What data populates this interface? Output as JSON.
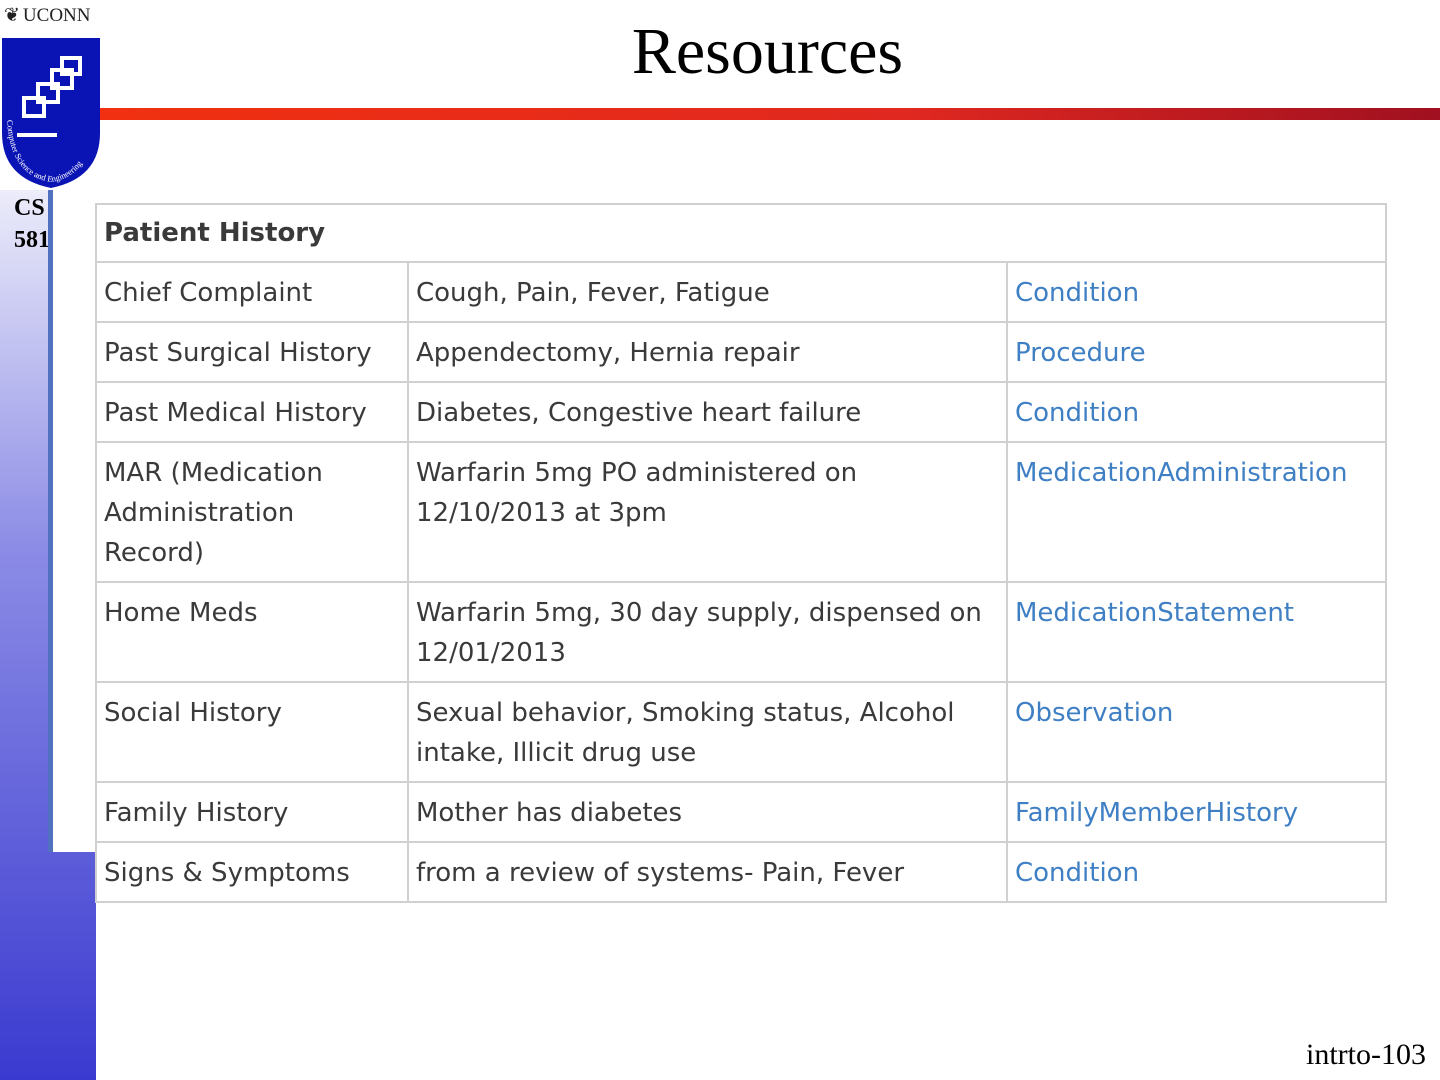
{
  "header": {
    "logo_text": "UCONN",
    "crest_text": "Computer Science and Engineering",
    "course": [
      "CS",
      "581"
    ],
    "title": "Resources"
  },
  "table": {
    "section": "Patient History",
    "rows": [
      [
        "Chief Complaint",
        "Cough, Pain, Fever, Fatigue",
        "Condition"
      ],
      [
        "Past Surgical History",
        "Appendectomy, Hernia repair",
        "Procedure"
      ],
      [
        "Past Medical History",
        "Diabetes, Congestive heart failure",
        "Condition"
      ],
      [
        "MAR (Medication Administration Record)",
        "Warfarin 5mg PO administered on 12/10/2013 at 3pm",
        "MedicationAdministration"
      ],
      [
        "Home Meds",
        "Warfarin 5mg, 30 day supply, dispensed on 12/01/2013",
        "MedicationStatement"
      ],
      [
        "Social History",
        "Sexual behavior, Smoking status, Alcohol intake, Illicit drug use",
        "Observation"
      ],
      [
        "Family History",
        "Mother has diabetes",
        "FamilyMemberHistory"
      ],
      [
        "Signs & Symptoms",
        "from a review of systems- Pain, Fever",
        "Condition"
      ]
    ]
  },
  "footer": {
    "page": "intrto-103"
  }
}
